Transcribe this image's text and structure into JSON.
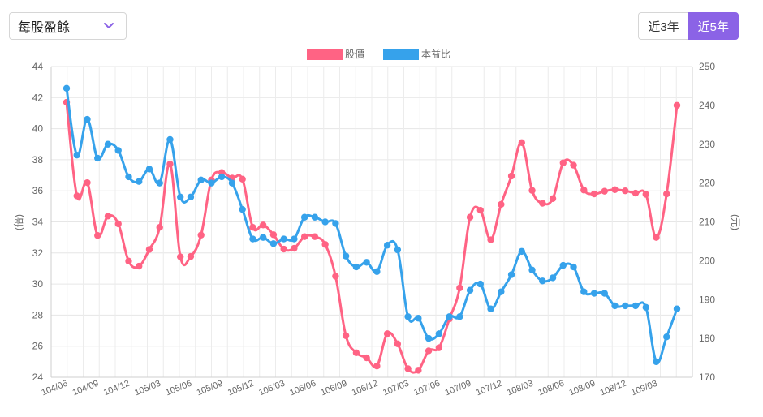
{
  "controls": {
    "metric_select": "每股盈餘",
    "range_buttons": [
      {
        "label": "近3年",
        "active": false
      },
      {
        "label": "近5年",
        "active": true
      }
    ]
  },
  "chart_data": {
    "type": "line",
    "title": "",
    "legend": [
      {
        "name": "股價",
        "color": "#ff6384"
      },
      {
        "name": "本益比",
        "color": "#36a2eb"
      }
    ],
    "left_axis": {
      "label": "(倍)",
      "min": 24,
      "max": 44,
      "step": 2,
      "series": "本益比"
    },
    "right_axis": {
      "label": "(元)",
      "min": 170,
      "max": 250,
      "step": 10,
      "series": "股價"
    },
    "x_tick_labels": [
      "104/06",
      "104/09",
      "104/12",
      "105/03",
      "105/06",
      "105/09",
      "105/12",
      "106/03",
      "106/06",
      "106/09",
      "106/12",
      "107/03",
      "107/06",
      "107/09",
      "107/12",
      "108/03",
      "108/06",
      "108/09",
      "108/12",
      "109/03"
    ],
    "series": [
      {
        "name": "股價",
        "color": "#ff6384",
        "axis": "right",
        "values": [
          240.8,
          216.7,
          220.1,
          206.5,
          211.5,
          209.5,
          199.9,
          198.6,
          202.9,
          208.6,
          224.9,
          201,
          201.1,
          206.6,
          220.8,
          222.7,
          221.3,
          221,
          208.6,
          209.2,
          206.7,
          203,
          203.2,
          206.2,
          206.2,
          204.2,
          196,
          180.7,
          176.3,
          175,
          172.9,
          181.2,
          178.6,
          172.2,
          171.8,
          176.8,
          177.6,
          185,
          193,
          211.2,
          213,
          205.4,
          214.5,
          221.8,
          230.4,
          218.1,
          214.8,
          216,
          225.2,
          224.6,
          218.2,
          217.2,
          217.9,
          218.3,
          218,
          217.4,
          217.1,
          206,
          217.2,
          240
        ]
      },
      {
        "name": "本益比",
        "color": "#36a2eb",
        "axis": "left",
        "values": [
          42.6,
          38.3,
          40.6,
          38.1,
          39,
          38.6,
          36.9,
          36.6,
          37.4,
          36.5,
          39.3,
          35.6,
          35.6,
          36.7,
          36.5,
          36.9,
          36.5,
          34.8,
          32.9,
          33,
          32.6,
          32.9,
          32.9,
          34.3,
          34.3,
          34,
          33.9,
          31.8,
          31.1,
          31.4,
          30.8,
          32.5,
          32.2,
          27.9,
          27.8,
          26.5,
          26.8,
          27.9,
          27.9,
          29.6,
          30,
          28.4,
          29.5,
          30.6,
          32.1,
          30.9,
          30.2,
          30.4,
          31.2,
          31.1,
          29.5,
          29.4,
          29.4,
          28.6,
          28.6,
          28.6,
          28.5,
          25,
          26.6,
          28.4
        ]
      }
    ]
  }
}
